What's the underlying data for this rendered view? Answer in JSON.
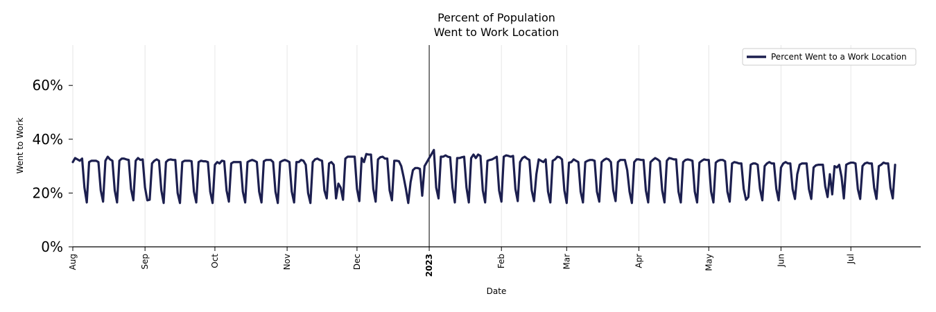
{
  "colors": {
    "line": "#1c1f4f",
    "grid": "#e6e6e6",
    "axis": "#000000",
    "legend_border": "#cccccc"
  },
  "chart_data": {
    "type": "line",
    "title_line1": "Percent of Population",
    "title_line2": "Went to Work Location",
    "xlabel": "Date",
    "ylabel": "Went to Work",
    "ylim": [
      0,
      75
    ],
    "yticks": [
      {
        "value": 0,
        "label": "0%"
      },
      {
        "value": 20,
        "label": "20%"
      },
      {
        "value": 40,
        "label": "40%"
      },
      {
        "value": 60,
        "label": "60%"
      }
    ],
    "x_range_days": [
      0,
      364
    ],
    "xticks": [
      {
        "day": 0,
        "label": "Aug",
        "bold": false
      },
      {
        "day": 31,
        "label": "Sep",
        "bold": false
      },
      {
        "day": 61,
        "label": "Oct",
        "bold": false
      },
      {
        "day": 92,
        "label": "Nov",
        "bold": false
      },
      {
        "day": 122,
        "label": "Dec",
        "bold": false
      },
      {
        "day": 153,
        "label": "2023",
        "bold": true
      },
      {
        "day": 184,
        "label": "Feb",
        "bold": false
      },
      {
        "day": 212,
        "label": "Mar",
        "bold": false
      },
      {
        "day": 243,
        "label": "Apr",
        "bold": false
      },
      {
        "day": 273,
        "label": "May",
        "bold": false
      },
      {
        "day": 304,
        "label": "Jun",
        "bold": false
      },
      {
        "day": 334,
        "label": "Jul",
        "bold": false
      }
    ],
    "year_marker_day": 153,
    "legend": {
      "label": "Percent Went to a Work Location",
      "position": "top-right"
    },
    "series": [
      {
        "name": "Percent Went to a Work Location",
        "start_day": 0,
        "values": [
          31.5,
          33,
          32.5,
          32,
          32.8,
          22,
          16.5,
          31.5,
          32,
          32,
          32,
          31.5,
          21,
          16.8,
          32,
          33.5,
          32.5,
          32,
          21,
          16.5,
          32,
          32.8,
          32.8,
          32.5,
          32.3,
          21.5,
          17.3,
          32,
          33,
          32.3,
          32.5,
          22,
          17.3,
          17.5,
          31,
          32,
          32.5,
          32,
          21,
          16.3,
          31.5,
          32.3,
          32.5,
          32.3,
          32.3,
          20,
          16.3,
          31.5,
          32,
          32,
          32,
          31.8,
          20.5,
          16.5,
          31.5,
          32,
          31.8,
          31.8,
          31.5,
          20.5,
          16.3,
          30.5,
          31.5,
          31,
          32,
          31.8,
          21,
          16.8,
          31,
          31.5,
          31.5,
          31.5,
          31.5,
          20.5,
          16.5,
          31.5,
          32,
          32.3,
          32,
          31.5,
          20.5,
          16.5,
          31.8,
          32.3,
          32.3,
          32.3,
          31.5,
          20.5,
          16.3,
          31.5,
          32,
          32.3,
          32,
          31.5,
          20.5,
          16.5,
          31.5,
          31.5,
          32.3,
          32,
          30.5,
          20,
          16.3,
          31.5,
          32.5,
          32.8,
          32.3,
          32,
          21,
          18,
          31,
          31.5,
          30.5,
          18,
          23.5,
          22,
          17.5,
          32.8,
          33.5,
          33.5,
          33.5,
          33.5,
          21.5,
          17,
          33,
          31.5,
          34.5,
          34.3,
          34.3,
          21.5,
          16.8,
          32.5,
          33.3,
          33.5,
          32.8,
          32.8,
          21,
          17.3,
          32,
          32,
          31.8,
          30,
          26,
          21.5,
          16.3,
          24,
          28.5,
          29.3,
          29.3,
          29,
          19,
          30,
          31.5,
          33,
          34.5,
          36,
          22,
          18,
          33.5,
          33.5,
          34,
          33.5,
          33.3,
          22,
          16.5,
          33,
          33,
          33.3,
          33.5,
          22,
          16.5,
          33,
          34.3,
          33,
          34.3,
          33.8,
          21,
          16.5,
          32,
          32.3,
          32.5,
          33,
          33.5,
          21,
          16.8,
          33.5,
          34,
          33.8,
          33.5,
          33.8,
          21.5,
          17,
          31.5,
          33,
          33.5,
          32.8,
          32.3,
          21,
          17,
          27,
          32.5,
          32,
          31.5,
          32.5,
          20.5,
          16.5,
          32,
          32.5,
          33.5,
          33.3,
          32.5,
          21,
          16.3,
          31.3,
          31.5,
          32.5,
          32,
          31.5,
          20.5,
          16.5,
          31.5,
          32,
          32.3,
          32.3,
          32,
          20.5,
          16.8,
          31.5,
          32.3,
          32.8,
          32.5,
          31.5,
          21,
          17,
          31.5,
          32.3,
          32.3,
          32.3,
          28.5,
          20.5,
          16.3,
          31.5,
          32.5,
          32.5,
          32.3,
          32.3,
          21,
          16.5,
          31.5,
          32.3,
          33,
          32.5,
          31.8,
          21,
          16.5,
          32,
          33,
          32.8,
          32.5,
          32.5,
          20.5,
          16.5,
          31.5,
          32.3,
          32.5,
          32.3,
          32,
          20.5,
          16.5,
          31.3,
          32,
          32.5,
          32.3,
          32.3,
          20.5,
          16.5,
          31.3,
          32,
          32.3,
          32.3,
          31.8,
          20.5,
          16.8,
          31,
          31.5,
          31.3,
          31,
          31,
          21.5,
          17.5,
          18.5,
          30.5,
          31,
          31,
          30.5,
          21.5,
          17.3,
          30,
          31,
          31.5,
          31,
          31,
          21.5,
          17.3,
          29.5,
          31,
          31.5,
          31,
          31,
          21.5,
          17.8,
          27,
          30.5,
          31,
          31,
          31,
          21.5,
          17.8,
          29.5,
          30.3,
          30.5,
          30.5,
          30.5,
          22.5,
          18.5,
          27,
          19.5,
          30,
          29.5,
          30.5,
          26,
          18,
          30.5,
          31,
          31.3,
          31.3,
          31,
          21.5,
          17.8,
          30,
          31,
          31.3,
          31,
          31,
          22,
          17.8,
          30,
          30.5,
          31.3,
          31,
          31,
          22,
          18,
          30.5
        ]
      }
    ]
  }
}
